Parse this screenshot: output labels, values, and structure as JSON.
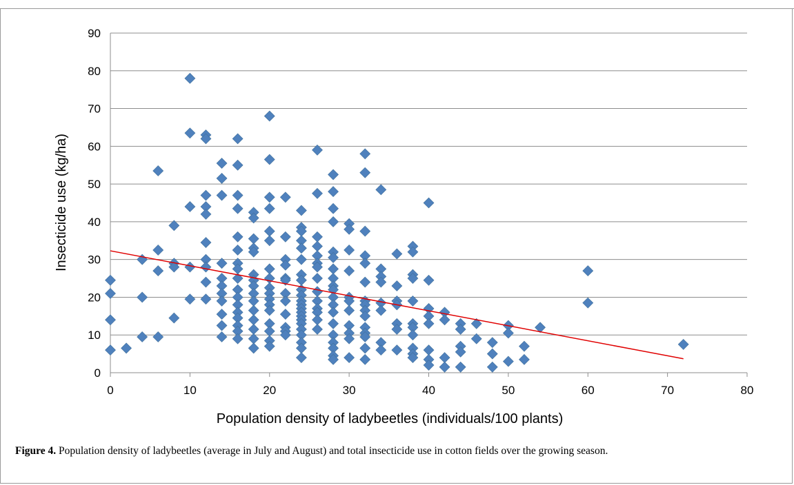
{
  "figure": {
    "caption_label": "Figure 4.",
    "caption_text": "Population density of ladybeetles (average in July and August) and total insecticide use in cotton fields over the growing season."
  },
  "chart_data": {
    "type": "scatter",
    "xlabel": "Population density of ladybeetles (individuals/100 plants)",
    "ylabel": "Insecticide use (kg/ha)",
    "xlim": [
      0,
      80
    ],
    "ylim": [
      0,
      90
    ],
    "xticks": [
      0,
      10,
      20,
      30,
      40,
      50,
      60,
      70,
      80
    ],
    "yticks": [
      0,
      10,
      20,
      30,
      40,
      50,
      60,
      70,
      80,
      90
    ],
    "grid": "horizontal",
    "marker_color": "#4f81bd",
    "trendline_color": "#e00000",
    "trendline": {
      "x": [
        0,
        72
      ],
      "y": [
        32.3,
        3.7
      ]
    },
    "points": [
      [
        0,
        24.5
      ],
      [
        0,
        21
      ],
      [
        0,
        14
      ],
      [
        0,
        6
      ],
      [
        2,
        6.5
      ],
      [
        4,
        30
      ],
      [
        4,
        20
      ],
      [
        4,
        9.5
      ],
      [
        6,
        53.5
      ],
      [
        6,
        32.5
      ],
      [
        6,
        27
      ],
      [
        6,
        9.5
      ],
      [
        8,
        39
      ],
      [
        8,
        29
      ],
      [
        8,
        28
      ],
      [
        8,
        14.5
      ],
      [
        10,
        78
      ],
      [
        10,
        63.5
      ],
      [
        10,
        44
      ],
      [
        10,
        28
      ],
      [
        10,
        19.5
      ],
      [
        12,
        63
      ],
      [
        12,
        62
      ],
      [
        12,
        47
      ],
      [
        12,
        44
      ],
      [
        12,
        42
      ],
      [
        12,
        34.5
      ],
      [
        12,
        30
      ],
      [
        12,
        28
      ],
      [
        12,
        24
      ],
      [
        12,
        19.5
      ],
      [
        14,
        55.5
      ],
      [
        14,
        51.5
      ],
      [
        14,
        47
      ],
      [
        14,
        29
      ],
      [
        14,
        25
      ],
      [
        14,
        23
      ],
      [
        14,
        21
      ],
      [
        14,
        19
      ],
      [
        14,
        15.5
      ],
      [
        14,
        12.5
      ],
      [
        14,
        9.5
      ],
      [
        16,
        62
      ],
      [
        16,
        55
      ],
      [
        16,
        47
      ],
      [
        16,
        43.5
      ],
      [
        16,
        36
      ],
      [
        16,
        32.5
      ],
      [
        16,
        29
      ],
      [
        16,
        27.5
      ],
      [
        16,
        25
      ],
      [
        16,
        22
      ],
      [
        16,
        20
      ],
      [
        16,
        18
      ],
      [
        16,
        16
      ],
      [
        16,
        14.5
      ],
      [
        16,
        12.5
      ],
      [
        16,
        11
      ],
      [
        16,
        9
      ],
      [
        18,
        42.5
      ],
      [
        18,
        41
      ],
      [
        18,
        35.5
      ],
      [
        18,
        33
      ],
      [
        18,
        32
      ],
      [
        18,
        26
      ],
      [
        18,
        24.5
      ],
      [
        18,
        23
      ],
      [
        18,
        21
      ],
      [
        18,
        19
      ],
      [
        18,
        16.5
      ],
      [
        18,
        14
      ],
      [
        18,
        11.5
      ],
      [
        18,
        9
      ],
      [
        18,
        6.5
      ],
      [
        20,
        68
      ],
      [
        20,
        56.5
      ],
      [
        20,
        46.5
      ],
      [
        20,
        43.5
      ],
      [
        20,
        37.5
      ],
      [
        20,
        35
      ],
      [
        20,
        27.5
      ],
      [
        20,
        25
      ],
      [
        20,
        22.5
      ],
      [
        20,
        21
      ],
      [
        20,
        19.5
      ],
      [
        20,
        18
      ],
      [
        20,
        16.5
      ],
      [
        20,
        13
      ],
      [
        20,
        11
      ],
      [
        20,
        8.5
      ],
      [
        20,
        7
      ],
      [
        22,
        46.5
      ],
      [
        22,
        36
      ],
      [
        22,
        30
      ],
      [
        22,
        28.5
      ],
      [
        22,
        25
      ],
      [
        22,
        24.5
      ],
      [
        22,
        21
      ],
      [
        22,
        19
      ],
      [
        22,
        15.5
      ],
      [
        22,
        12
      ],
      [
        22,
        11
      ],
      [
        22,
        10
      ],
      [
        24,
        43
      ],
      [
        24,
        38.5
      ],
      [
        24,
        37.5
      ],
      [
        24,
        35
      ],
      [
        24,
        33
      ],
      [
        24,
        30
      ],
      [
        24,
        26
      ],
      [
        24,
        24.5
      ],
      [
        24,
        22
      ],
      [
        24,
        20.5
      ],
      [
        24,
        19
      ],
      [
        24,
        18
      ],
      [
        24,
        17
      ],
      [
        24,
        16
      ],
      [
        24,
        15
      ],
      [
        24,
        14
      ],
      [
        24,
        13
      ],
      [
        24,
        11.5
      ],
      [
        24,
        10
      ],
      [
        24,
        8
      ],
      [
        24,
        6.5
      ],
      [
        24,
        4
      ],
      [
        26,
        59
      ],
      [
        26,
        47.5
      ],
      [
        26,
        36
      ],
      [
        26,
        33.5
      ],
      [
        26,
        31
      ],
      [
        26,
        29
      ],
      [
        26,
        28
      ],
      [
        26,
        25
      ],
      [
        26,
        21.5
      ],
      [
        26,
        19
      ],
      [
        26,
        17
      ],
      [
        26,
        16
      ],
      [
        26,
        14
      ],
      [
        26,
        11.5
      ],
      [
        28,
        52.5
      ],
      [
        28,
        48
      ],
      [
        28,
        43.5
      ],
      [
        28,
        40
      ],
      [
        28,
        32
      ],
      [
        28,
        30.5
      ],
      [
        28,
        27.5
      ],
      [
        28,
        25
      ],
      [
        28,
        23
      ],
      [
        28,
        22
      ],
      [
        28,
        20
      ],
      [
        28,
        18
      ],
      [
        28,
        16
      ],
      [
        28,
        13
      ],
      [
        28,
        10
      ],
      [
        28,
        8
      ],
      [
        28,
        6.5
      ],
      [
        28,
        4.5
      ],
      [
        28,
        3.5
      ],
      [
        30,
        39.5
      ],
      [
        30,
        38
      ],
      [
        30,
        32.5
      ],
      [
        30,
        27
      ],
      [
        30,
        20
      ],
      [
        30,
        19
      ],
      [
        30,
        16.5
      ],
      [
        30,
        12.5
      ],
      [
        30,
        10.5
      ],
      [
        30,
        9
      ],
      [
        30,
        4
      ],
      [
        32,
        58
      ],
      [
        32,
        53
      ],
      [
        32,
        37.5
      ],
      [
        32,
        31
      ],
      [
        32,
        29
      ],
      [
        32,
        24
      ],
      [
        32,
        19
      ],
      [
        32,
        18
      ],
      [
        32,
        16.5
      ],
      [
        32,
        15
      ],
      [
        32,
        12
      ],
      [
        32,
        10.5
      ],
      [
        32,
        9.5
      ],
      [
        32,
        6.5
      ],
      [
        32,
        3.5
      ],
      [
        34,
        48.5
      ],
      [
        34,
        27.5
      ],
      [
        34,
        25.5
      ],
      [
        34,
        24
      ],
      [
        34,
        18.5
      ],
      [
        34,
        16.5
      ],
      [
        34,
        8
      ],
      [
        34,
        6
      ],
      [
        36,
        31.5
      ],
      [
        36,
        23
      ],
      [
        36,
        19
      ],
      [
        36,
        18
      ],
      [
        36,
        13
      ],
      [
        36,
        11.5
      ],
      [
        36,
        6
      ],
      [
        38,
        33.5
      ],
      [
        38,
        32
      ],
      [
        38,
        26
      ],
      [
        38,
        25
      ],
      [
        38,
        19
      ],
      [
        38,
        13
      ],
      [
        38,
        12
      ],
      [
        38,
        10
      ],
      [
        38,
        6.5
      ],
      [
        38,
        5
      ],
      [
        38,
        4
      ],
      [
        40,
        45
      ],
      [
        40,
        24.5
      ],
      [
        40,
        17
      ],
      [
        40,
        15
      ],
      [
        40,
        13
      ],
      [
        40,
        6
      ],
      [
        40,
        3.5
      ],
      [
        40,
        2
      ],
      [
        42,
        16
      ],
      [
        42,
        14
      ],
      [
        42,
        4
      ],
      [
        42,
        1.5
      ],
      [
        44,
        13
      ],
      [
        44,
        11.5
      ],
      [
        44,
        7
      ],
      [
        44,
        5.5
      ],
      [
        44,
        1.5
      ],
      [
        46,
        13
      ],
      [
        46,
        9
      ],
      [
        48,
        8
      ],
      [
        48,
        5
      ],
      [
        48,
        1.5
      ],
      [
        50,
        12.5
      ],
      [
        50,
        10.5
      ],
      [
        50,
        3
      ],
      [
        52,
        7
      ],
      [
        52,
        3.5
      ],
      [
        54,
        12
      ],
      [
        60,
        27
      ],
      [
        60,
        18.5
      ],
      [
        72,
        7.5
      ]
    ]
  }
}
